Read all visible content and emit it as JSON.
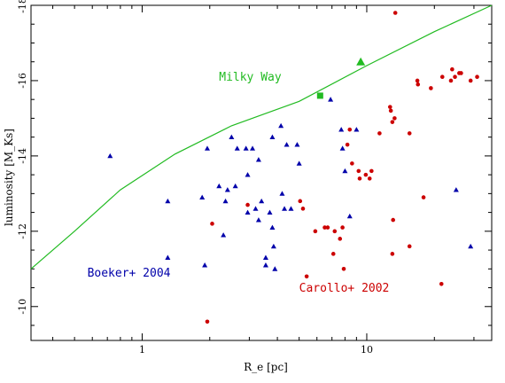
{
  "chart_data": {
    "type": "scatter",
    "title": "",
    "xlabel": "R_e [pc]",
    "ylabel": "luminosity [M_Ks]",
    "xscale": "log",
    "yscale": "linear",
    "xlim": [
      0.32,
      36
    ],
    "ylim": [
      -9.1,
      -18
    ],
    "x_ticks": [
      1,
      10
    ],
    "x_tick_labels": [
      "1",
      "10"
    ],
    "y_ticks": [
      -10,
      -12,
      -14,
      -16,
      -18
    ],
    "y_tick_labels": [
      "-10",
      "-12",
      "-14",
      "-16",
      "-18"
    ],
    "grid": false,
    "legend": "none",
    "annotations": [
      {
        "text": "Milky Way",
        "x": 2.2,
        "y": -16.0,
        "color": "#22bb22"
      },
      {
        "text": "Boeker+ 2004",
        "x": 0.57,
        "y": -10.8,
        "color": "#0000aa"
      },
      {
        "text": "Carollo+ 2002",
        "x": 5.0,
        "y": -10.4,
        "color": "#cc0000"
      }
    ],
    "series": [
      {
        "name": "Boeker+ 2004",
        "marker": "triangle",
        "color": "#0000aa",
        "points": [
          [
            0.72,
            -14.0
          ],
          [
            1.3,
            -12.8
          ],
          [
            1.3,
            -11.3
          ],
          [
            1.85,
            -12.9
          ],
          [
            1.9,
            -11.1
          ],
          [
            1.95,
            -14.2
          ],
          [
            2.2,
            -13.2
          ],
          [
            2.3,
            -11.9
          ],
          [
            2.35,
            -12.8
          ],
          [
            2.4,
            -13.1
          ],
          [
            2.5,
            -14.5
          ],
          [
            2.6,
            -13.2
          ],
          [
            2.65,
            -14.2
          ],
          [
            2.9,
            -14.2
          ],
          [
            2.95,
            -13.5
          ],
          [
            2.95,
            -12.5
          ],
          [
            3.1,
            -14.2
          ],
          [
            3.2,
            -12.6
          ],
          [
            3.3,
            -13.9
          ],
          [
            3.3,
            -12.3
          ],
          [
            3.4,
            -12.8
          ],
          [
            3.55,
            -11.1
          ],
          [
            3.55,
            -11.3
          ],
          [
            3.7,
            -12.5
          ],
          [
            3.8,
            -14.5
          ],
          [
            3.8,
            -12.1
          ],
          [
            3.85,
            -11.6
          ],
          [
            3.9,
            -11.0
          ],
          [
            4.15,
            -14.8
          ],
          [
            4.2,
            -13.0
          ],
          [
            4.3,
            -12.6
          ],
          [
            4.4,
            -14.3
          ],
          [
            4.6,
            -12.6
          ],
          [
            4.9,
            -14.3
          ],
          [
            5.0,
            -13.8
          ],
          [
            6.9,
            -15.5
          ],
          [
            7.7,
            -14.7
          ],
          [
            7.8,
            -14.2
          ],
          [
            8.0,
            -13.6
          ],
          [
            8.4,
            -12.4
          ],
          [
            9.0,
            -14.7
          ],
          [
            25.0,
            -13.1
          ],
          [
            29.0,
            -11.6
          ]
        ]
      },
      {
        "name": "Carollo+ 2002",
        "marker": "circle",
        "color": "#cc0000",
        "points": [
          [
            1.95,
            -9.6
          ],
          [
            2.05,
            -12.2
          ],
          [
            2.95,
            -12.7
          ],
          [
            5.05,
            -12.8
          ],
          [
            5.2,
            -12.6
          ],
          [
            5.4,
            -10.8
          ],
          [
            5.9,
            -12.0
          ],
          [
            6.5,
            -12.1
          ],
          [
            6.7,
            -12.1
          ],
          [
            7.1,
            -11.4
          ],
          [
            7.2,
            -12.0
          ],
          [
            7.6,
            -11.8
          ],
          [
            7.8,
            -12.1
          ],
          [
            7.9,
            -11.0
          ],
          [
            8.2,
            -14.3
          ],
          [
            8.4,
            -14.7
          ],
          [
            8.6,
            -13.8
          ],
          [
            9.2,
            -13.6
          ],
          [
            9.3,
            -13.4
          ],
          [
            9.9,
            -13.5
          ],
          [
            10.3,
            -13.4
          ],
          [
            10.5,
            -13.6
          ],
          [
            11.4,
            -14.6
          ],
          [
            12.7,
            -15.3
          ],
          [
            12.8,
            -15.2
          ],
          [
            13.0,
            -14.9
          ],
          [
            13.0,
            -11.4
          ],
          [
            13.1,
            -12.3
          ],
          [
            13.3,
            -15.0
          ],
          [
            13.4,
            -17.8
          ],
          [
            15.5,
            -14.6
          ],
          [
            15.5,
            -11.6
          ],
          [
            16.8,
            -16.0
          ],
          [
            16.9,
            -15.9
          ],
          [
            17.9,
            -12.9
          ],
          [
            19.3,
            -15.8
          ],
          [
            21.5,
            -10.6
          ],
          [
            21.7,
            -16.1
          ],
          [
            23.7,
            -16.0
          ],
          [
            24.0,
            -16.3
          ],
          [
            24.7,
            -16.1
          ],
          [
            25.8,
            -16.2
          ],
          [
            26.3,
            -16.2
          ],
          [
            29.0,
            -16.0
          ],
          [
            31.0,
            -16.1
          ]
        ]
      },
      {
        "name": "Milky Way",
        "marker": "square",
        "color": "#22bb22",
        "points": [
          [
            6.2,
            -15.6
          ]
        ]
      },
      {
        "name": "",
        "marker": "triangle-large",
        "color": "#22bb22",
        "points": [
          [
            9.4,
            -16.5
          ]
        ]
      }
    ],
    "lines": [
      {
        "name": "Milky Way",
        "color": "#22bb22",
        "points": [
          [
            0.32,
            -11.0
          ],
          [
            0.5,
            -12.0
          ],
          [
            0.8,
            -13.1
          ],
          [
            1.4,
            -14.05
          ],
          [
            2.5,
            -14.8
          ],
          [
            5.0,
            -15.45
          ],
          [
            10.0,
            -16.4
          ],
          [
            20.0,
            -17.3
          ],
          [
            36.0,
            -18.0
          ]
        ]
      }
    ]
  }
}
